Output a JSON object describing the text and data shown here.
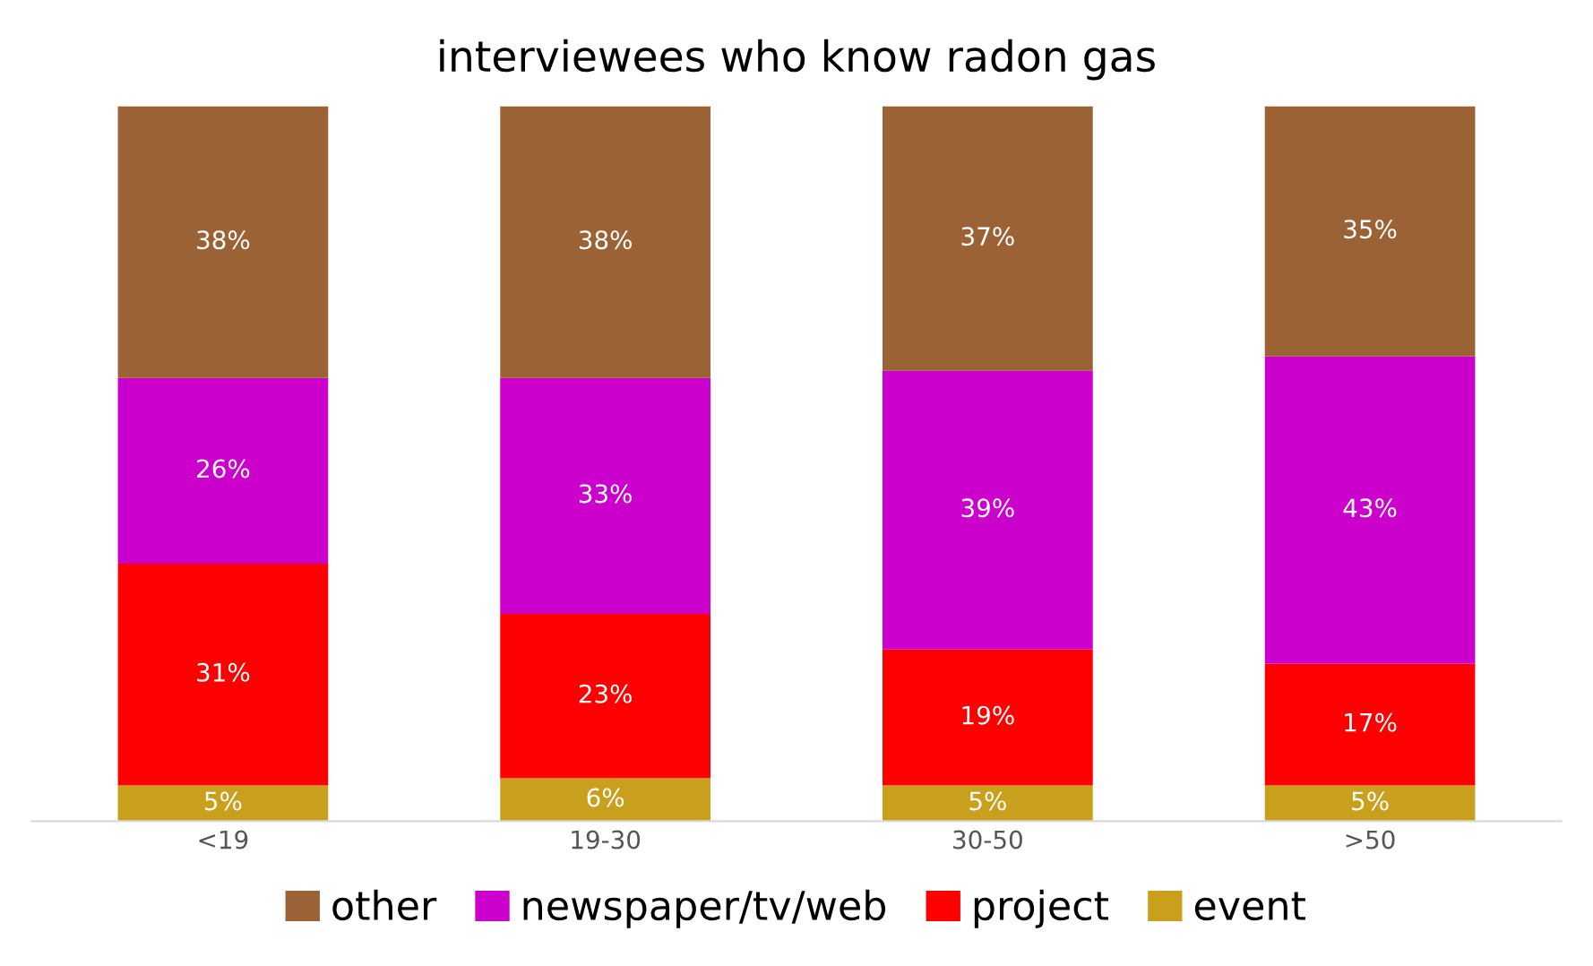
{
  "chart_data": {
    "type": "bar",
    "title": "interviewees who know radon gas",
    "categories": [
      "<19",
      "19-30",
      "30-50",
      ">50"
    ],
    "stacked": true,
    "legend": "bottom",
    "grid": false,
    "series": [
      {
        "name": "event",
        "color": "#c9a01c",
        "values": [
          5,
          6,
          5,
          5
        ],
        "value_labels": [
          "5%",
          "6%",
          "5%",
          "5%"
        ]
      },
      {
        "name": "project",
        "color": "#ff0000",
        "values": [
          31,
          23,
          19,
          17
        ],
        "value_labels": [
          "31%",
          "23%",
          "19%",
          "17%"
        ]
      },
      {
        "name": "newspaper/tv/web",
        "color": "#cc00cc",
        "values": [
          26,
          33,
          39,
          43
        ],
        "value_labels": [
          "26%",
          "33%",
          "39%",
          "43%"
        ]
      },
      {
        "name": "other",
        "color": "#9a6235",
        "values": [
          38,
          38,
          37,
          35
        ],
        "value_labels": [
          "38%",
          "38%",
          "37%",
          "35%"
        ]
      }
    ]
  }
}
